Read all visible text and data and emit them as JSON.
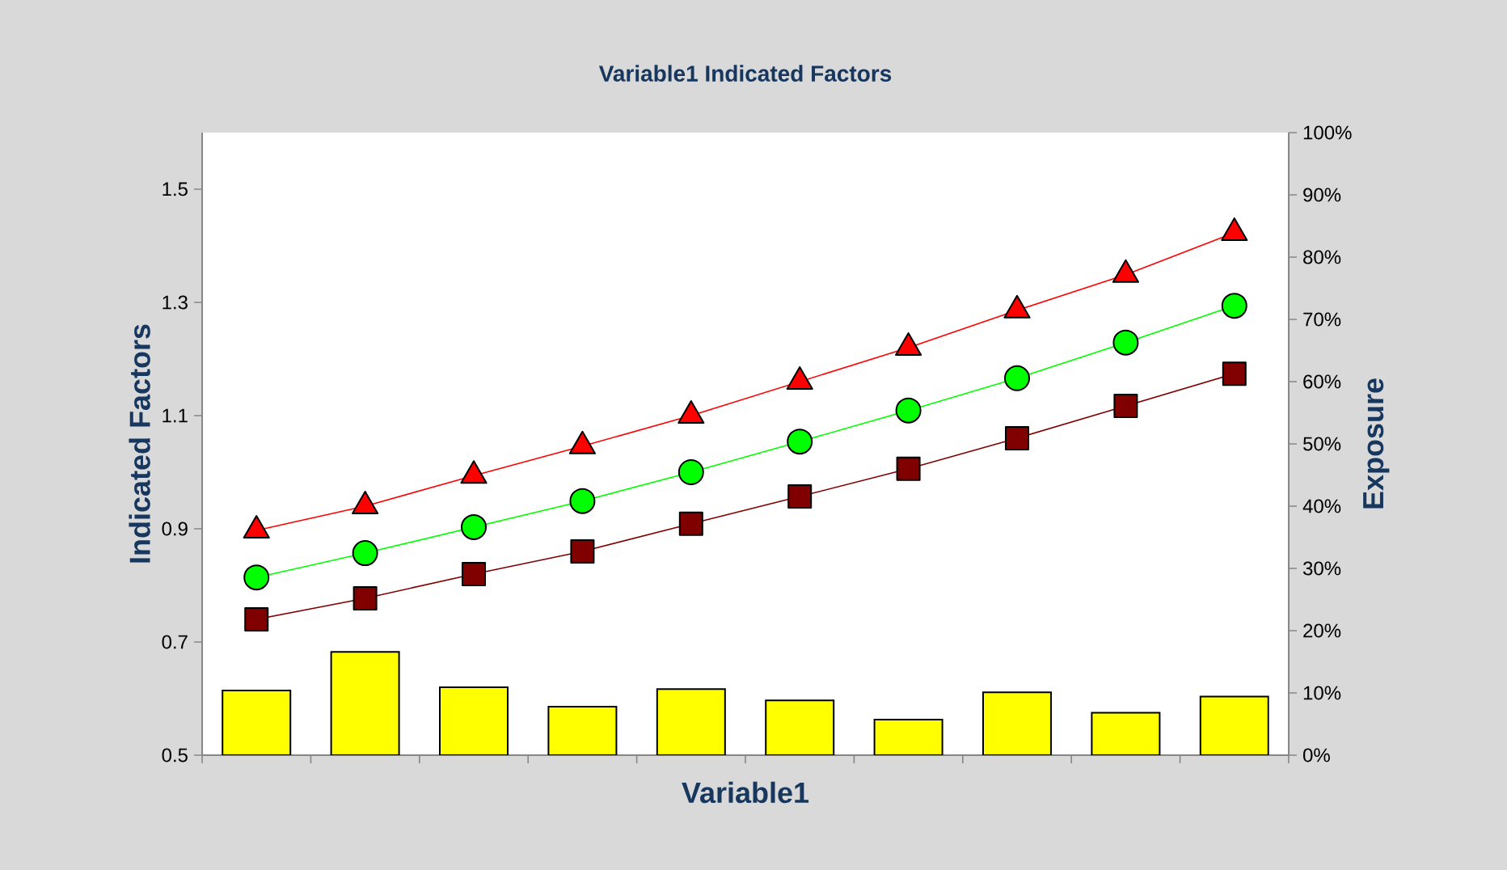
{
  "chart_data": {
    "type": "line",
    "title": "Variable1 Indicated Factors",
    "xlabel": "Variable1",
    "ylabel": "Indicated Factors",
    "y2label": "Exposure",
    "categories": [
      null,
      null,
      null,
      null,
      null,
      null,
      null,
      null,
      null,
      null
    ],
    "series": [
      {
        "type": "bar",
        "axis": "y2",
        "color": "#ffff00",
        "values": [
          10.4,
          16.6,
          10.9,
          7.8,
          10.6,
          8.8,
          5.7,
          10.1,
          6.8,
          9.4
        ]
      },
      {
        "marker": "triangle",
        "color": "#ff0000",
        "values": [
          0.897,
          0.94,
          0.994,
          1.046,
          1.1,
          1.16,
          1.22,
          1.286,
          1.349,
          1.423
        ]
      },
      {
        "marker": "circle",
        "color": "#00ff00",
        "values": [
          0.814,
          0.857,
          0.903,
          0.949,
          1.0,
          1.054,
          1.109,
          1.166,
          1.229,
          1.294
        ]
      },
      {
        "marker": "square",
        "color": "#800000",
        "values": [
          0.74,
          0.777,
          0.82,
          0.86,
          0.909,
          0.957,
          1.006,
          1.06,
          1.117,
          1.174
        ]
      }
    ],
    "ylim": [
      0.5,
      1.6
    ],
    "yticks": [
      0.5,
      0.7,
      0.9,
      1.1,
      1.3,
      1.5
    ],
    "y2lim": [
      0,
      100
    ],
    "y2ticks": [
      {
        "value": 0,
        "label": "0%"
      },
      {
        "value": 10,
        "label": "10%"
      },
      {
        "value": 20,
        "label": "20%"
      },
      {
        "value": 30,
        "label": "30%"
      },
      {
        "value": 40,
        "label": "40%"
      },
      {
        "value": 50,
        "label": "50%"
      },
      {
        "value": 60,
        "label": "60%"
      },
      {
        "value": 70,
        "label": "70%"
      },
      {
        "value": 80,
        "label": "80%"
      },
      {
        "value": 90,
        "label": "90%"
      },
      {
        "value": 100,
        "label": "100%"
      }
    ]
  }
}
